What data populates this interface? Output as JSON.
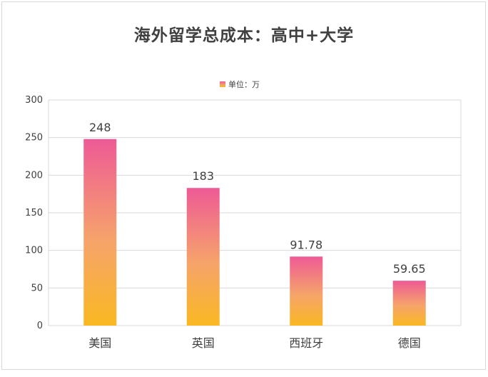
{
  "chart_data": {
    "type": "bar",
    "title": "海外留学总成本：高中+大学",
    "legend": {
      "position": "top",
      "entries": [
        "单位：万"
      ]
    },
    "categories": [
      "美国",
      "英国",
      "西班牙",
      "德国"
    ],
    "series": [
      {
        "name": "单位：万",
        "values": [
          248,
          183,
          91.78,
          59.65
        ],
        "value_labels": [
          "248",
          "183",
          "91.78",
          "59.65"
        ]
      }
    ],
    "ylim": [
      0,
      300
    ],
    "yticks": [
      0,
      50,
      100,
      150,
      200,
      250,
      300
    ],
    "grid": true,
    "colors": {
      "bar_top": "#ee5a96",
      "bar_mid": "#f6a46a",
      "bar_bottom": "#fab822",
      "grid": "#d9d9d9",
      "text": "#404040"
    }
  }
}
